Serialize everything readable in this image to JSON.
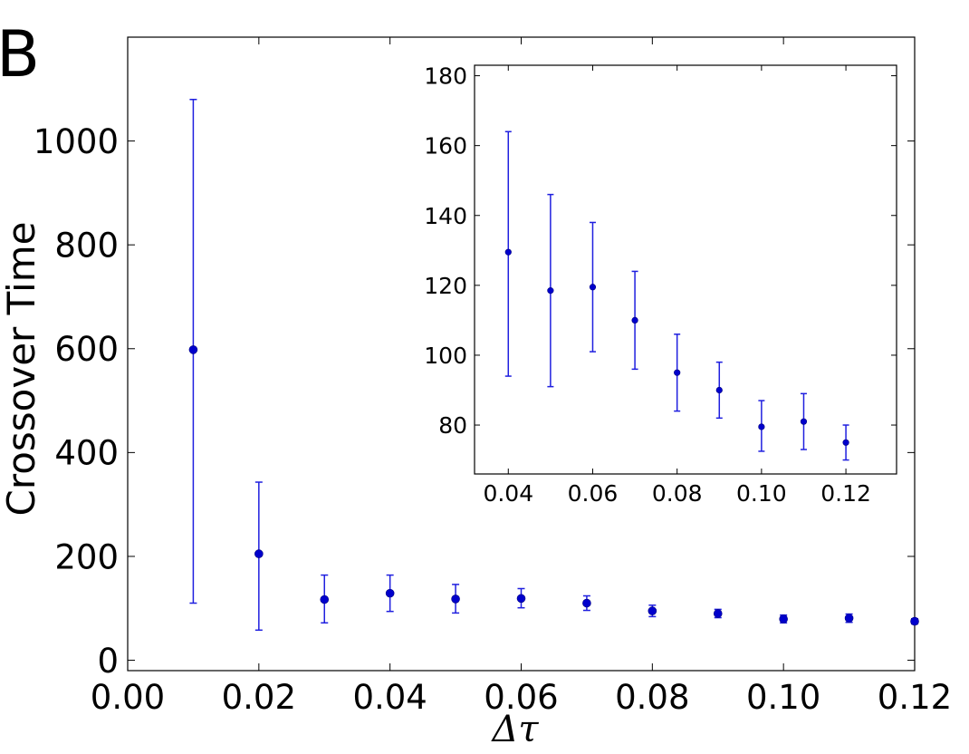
{
  "panel_label": "B",
  "colors": {
    "series": "#0000cc",
    "errorbar": "#1f1fdf",
    "axes": "#000000",
    "background": "#ffffff"
  },
  "chart_data": [
    {
      "id": "main",
      "type": "scatter",
      "error_bars": true,
      "xlabel": "Δτ",
      "ylabel": "Crossover Time",
      "xlim": [
        0.0,
        0.12
      ],
      "ylim": [
        -20,
        1200
      ],
      "xticks": [
        0.0,
        0.02,
        0.04,
        0.06,
        0.08,
        0.1,
        0.12
      ],
      "xtick_labels": [
        "0.00",
        "0.02",
        "0.04",
        "0.06",
        "0.08",
        "0.10",
        "0.12"
      ],
      "yticks": [
        0,
        200,
        400,
        600,
        800,
        1000
      ],
      "ytick_labels": [
        "0",
        "200",
        "400",
        "600",
        "800",
        "1000"
      ],
      "grid": false,
      "points": [
        {
          "x": 0.01,
          "y": 598,
          "ylow": 110,
          "yhigh": 1080
        },
        {
          "x": 0.02,
          "y": 205,
          "ylow": 58,
          "yhigh": 343
        },
        {
          "x": 0.03,
          "y": 117,
          "ylow": 72,
          "yhigh": 164
        },
        {
          "x": 0.04,
          "y": 129,
          "ylow": 94,
          "yhigh": 164
        },
        {
          "x": 0.05,
          "y": 118,
          "ylow": 91,
          "yhigh": 146
        },
        {
          "x": 0.06,
          "y": 119,
          "ylow": 101,
          "yhigh": 138
        },
        {
          "x": 0.07,
          "y": 110,
          "ylow": 96,
          "yhigh": 124
        },
        {
          "x": 0.08,
          "y": 95,
          "ylow": 84,
          "yhigh": 106
        },
        {
          "x": 0.09,
          "y": 90,
          "ylow": 82,
          "yhigh": 98
        },
        {
          "x": 0.1,
          "y": 79.5,
          "ylow": 72,
          "yhigh": 87
        },
        {
          "x": 0.11,
          "y": 81,
          "ylow": 73,
          "yhigh": 89
        },
        {
          "x": 0.12,
          "y": 75,
          "ylow": 70,
          "yhigh": 80
        }
      ]
    },
    {
      "id": "inset",
      "type": "scatter",
      "error_bars": true,
      "xlabel": "",
      "ylabel": "",
      "xlim": [
        0.032,
        0.132
      ],
      "ylim": [
        66,
        183
      ],
      "xticks": [
        0.04,
        0.06,
        0.08,
        0.1,
        0.12
      ],
      "xtick_labels": [
        "0.04",
        "0.06",
        "0.08",
        "0.10",
        "0.12"
      ],
      "yticks": [
        80,
        100,
        120,
        140,
        160,
        180
      ],
      "ytick_labels": [
        "80",
        "100",
        "120",
        "140",
        "160",
        "180"
      ],
      "grid": false,
      "points": [
        {
          "x": 0.04,
          "y": 129.5,
          "ylow": 94,
          "yhigh": 164
        },
        {
          "x": 0.05,
          "y": 118.5,
          "ylow": 91,
          "yhigh": 146
        },
        {
          "x": 0.06,
          "y": 119.5,
          "ylow": 101,
          "yhigh": 138
        },
        {
          "x": 0.07,
          "y": 110,
          "ylow": 96,
          "yhigh": 124
        },
        {
          "x": 0.08,
          "y": 95,
          "ylow": 84,
          "yhigh": 106
        },
        {
          "x": 0.09,
          "y": 90,
          "ylow": 82,
          "yhigh": 98
        },
        {
          "x": 0.1,
          "y": 79.5,
          "ylow": 72.5,
          "yhigh": 87
        },
        {
          "x": 0.11,
          "y": 81,
          "ylow": 73,
          "yhigh": 89
        },
        {
          "x": 0.12,
          "y": 75,
          "ylow": 70,
          "yhigh": 80
        }
      ]
    }
  ]
}
